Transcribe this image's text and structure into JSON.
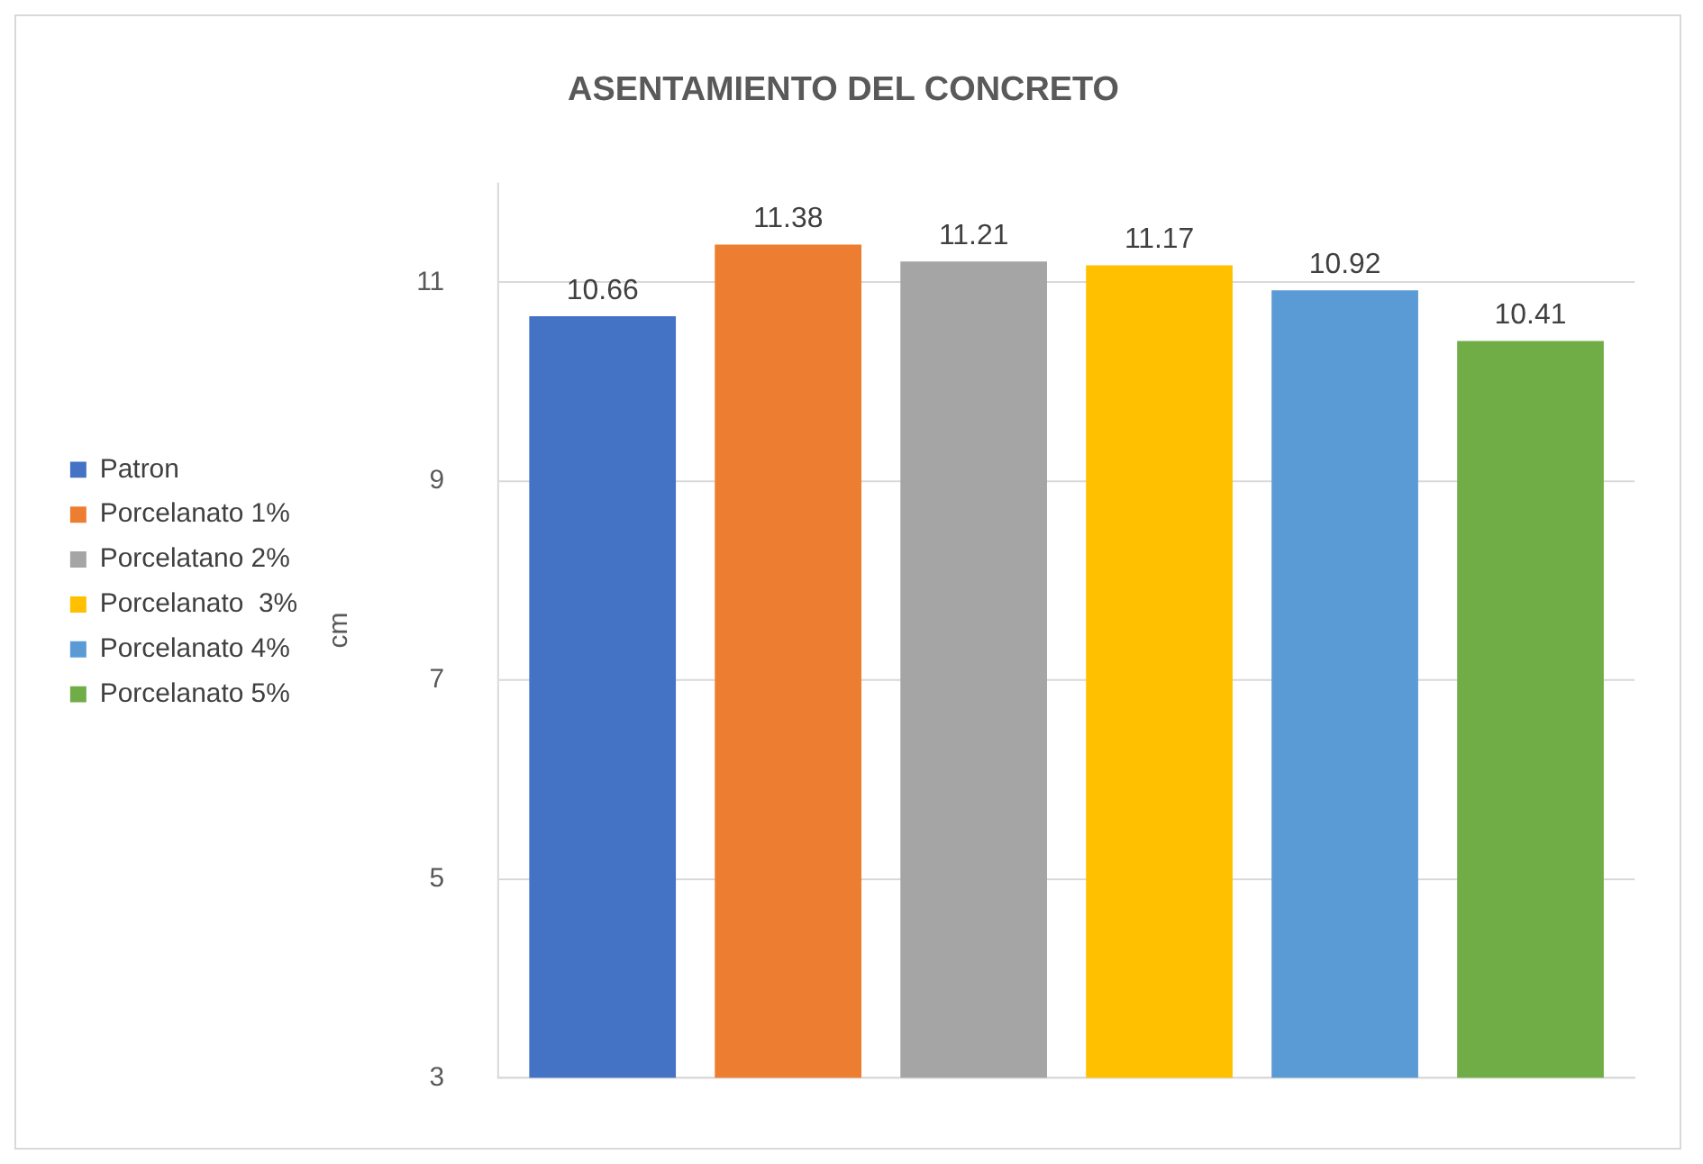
{
  "chart_data": {
    "type": "bar",
    "title": "ASENTAMIENTO DEL CONCRETO",
    "ylabel": "cm",
    "categories": [
      null
    ],
    "series": [
      {
        "name": "Patron",
        "color": "#4472c4",
        "values": [
          10.66
        ]
      },
      {
        "name": "Porcelanato 1%",
        "color": "#ed7d31",
        "values": [
          11.38
        ]
      },
      {
        "name": "Porcelatano 2%",
        "color": "#a5a5a5",
        "values": [
          11.21
        ]
      },
      {
        "name": "Porcelanato  3%",
        "color": "#ffc000",
        "values": [
          11.17
        ]
      },
      {
        "name": "Porcelanato 4%",
        "color": "#5b9bd5",
        "values": [
          10.92
        ]
      },
      {
        "name": "Porcelanato 5%",
        "color": "#70ad47",
        "values": [
          10.41
        ]
      }
    ],
    "ylim": [
      3,
      12
    ],
    "yticks": [
      3,
      5,
      7,
      9,
      11
    ],
    "grid": "y",
    "legend": "left",
    "data_labels": true
  }
}
